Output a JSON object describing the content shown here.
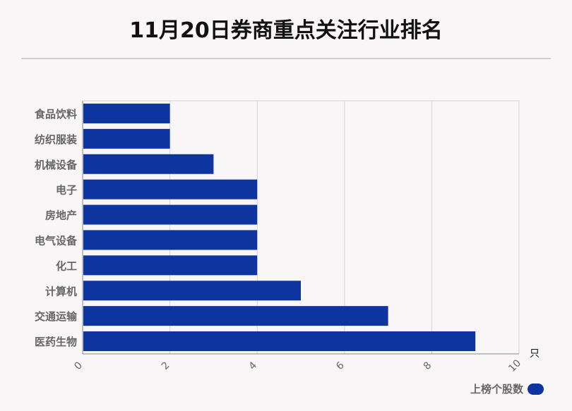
{
  "title": "11月20日券商重点关注行业排名",
  "chart_data": {
    "type": "bar",
    "orientation": "horizontal",
    "categories": [
      "食品饮料",
      "纺织服装",
      "机械设备",
      "电子",
      "房地产",
      "电气设备",
      "化工",
      "计算机",
      "交通运输",
      "医药生物"
    ],
    "series": [
      {
        "name": "上榜个股数",
        "values": [
          2,
          2,
          3,
          4,
          4,
          4,
          4,
          5,
          7,
          9
        ]
      }
    ],
    "x_ticks": [
      "0",
      "2",
      "4",
      "6",
      "8",
      "10"
    ],
    "xlim": [
      0,
      10
    ],
    "x_unit": "只",
    "grid": true,
    "legend_position": "bottom-right",
    "bar_color": "#0e34a0"
  }
}
